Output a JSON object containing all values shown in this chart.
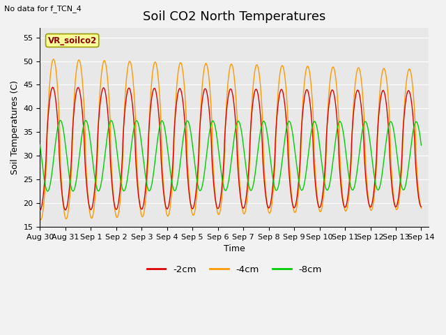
{
  "title": "Soil CO2 North Temperatures",
  "no_data_label": "No data for f_TCN_4",
  "vr_label": "VR_soilco2",
  "ylabel": "Soil Temperatures (C)",
  "xlabel": "Time",
  "ylim": [
    15,
    57
  ],
  "yticks": [
    15,
    20,
    25,
    30,
    35,
    40,
    45,
    50,
    55
  ],
  "x_start_day": 0,
  "x_end_day": 15.3,
  "xtick_labels": [
    "Aug 30",
    "Aug 31",
    "Sep 1",
    "Sep 2",
    "Sep 3",
    "Sep 4",
    "Sep 5",
    "Sep 6",
    "Sep 7",
    "Sep 8",
    "Sep 9",
    "Sep 10",
    "Sep 11",
    "Sep 12",
    "Sep 13",
    "Sep 14"
  ],
  "xtick_positions": [
    0,
    1,
    2,
    3,
    4,
    5,
    6,
    7,
    8,
    9,
    10,
    11,
    12,
    13,
    14,
    15
  ],
  "series": [
    {
      "label": "-2cm",
      "color": "#dd0000"
    },
    {
      "label": "-4cm",
      "color": "#ff9900"
    },
    {
      "label": "-8cm",
      "color": "#00cc00"
    }
  ],
  "background_color": "#e8e8e8",
  "grid_color": "#ffffff",
  "title_fontsize": 13,
  "axis_fontsize": 9,
  "tick_fontsize": 8,
  "fig_bg": "#f2f2f2"
}
